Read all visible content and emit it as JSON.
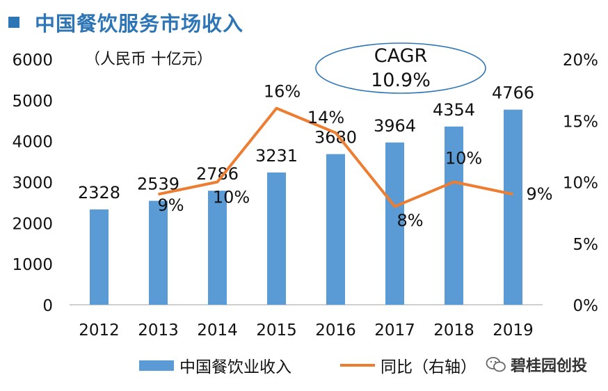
{
  "colors": {
    "title": "#2E75B6",
    "bar": "#5B9BD5",
    "line": "#ED7D31",
    "axis": "#BFBFBF",
    "text": "#111111",
    "ellipse": "#2E75B6"
  },
  "title": "中国餐饮服务市场收入",
  "unit_label": "（人民币 十亿元）",
  "cagr": {
    "label": "CAGR",
    "value": "10.9%"
  },
  "legend": {
    "bar_label": "中国餐饮业收入",
    "line_label": "同比（右轴）"
  },
  "watermark": "碧桂园创投",
  "chart_data": {
    "type": "bar",
    "categories": [
      "2012",
      "2013",
      "2014",
      "2015",
      "2016",
      "2017",
      "2018",
      "2019"
    ],
    "series": [
      {
        "name": "中国餐饮业收入",
        "kind": "bar",
        "axis": "left",
        "values": [
          2328,
          2539,
          2786,
          3231,
          3680,
          3964,
          4354,
          4766
        ],
        "labels": [
          "2328",
          "2539",
          "2786",
          "3231",
          "3680",
          "3964",
          "4354",
          "4766"
        ]
      },
      {
        "name": "同比（右轴）",
        "kind": "line",
        "axis": "right",
        "values": [
          null,
          9,
          10,
          16,
          14,
          8,
          10,
          9
        ],
        "labels": [
          null,
          "9%",
          "10%",
          "16%",
          "14%",
          "8%",
          "10%",
          "9%"
        ]
      }
    ],
    "y_left": {
      "min": 0,
      "max": 6000,
      "ticks": [
        "0",
        "1000",
        "2000",
        "3000",
        "4000",
        "5000",
        "6000"
      ]
    },
    "y_right": {
      "min": 0,
      "max": 20,
      "ticks": [
        "0%",
        "5%",
        "10%",
        "15%",
        "20%"
      ]
    },
    "xlabel": "",
    "ylabel": "人民币 十亿元"
  }
}
